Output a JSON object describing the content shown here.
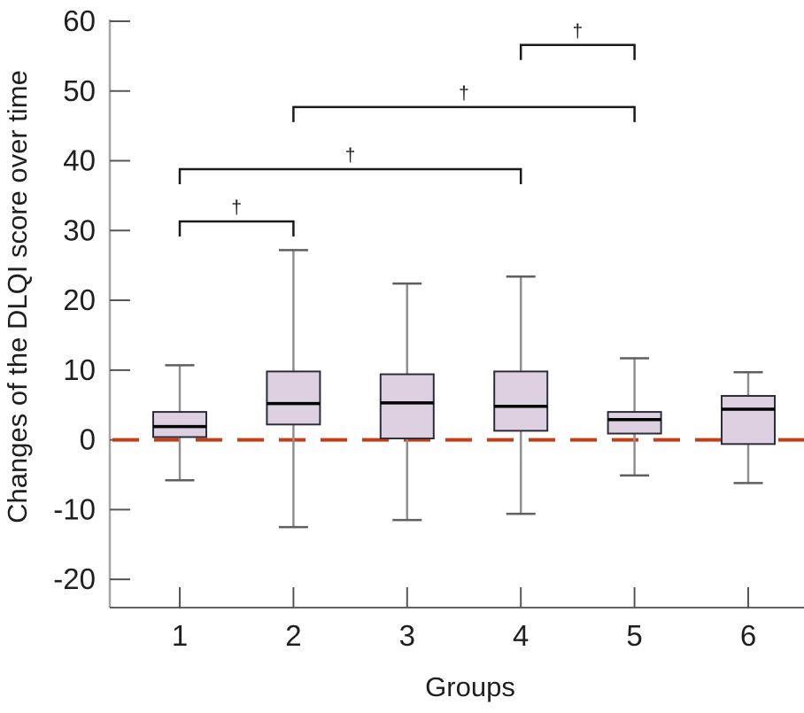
{
  "figure": {
    "ylabel": "Changes of the DLQI score over time",
    "xlabel": "Groups"
  },
  "chart_data": {
    "type": "boxplot",
    "title": "",
    "xlabel": "Groups",
    "ylabel": "Changes of the DLQI score over time",
    "categories": [
      "1",
      "2",
      "3",
      "4",
      "5",
      "6"
    ],
    "y_ticks": [
      60,
      50,
      40,
      30,
      20,
      10,
      0,
      -10,
      -20
    ],
    "ylim": [
      -24,
      61
    ],
    "grid": false,
    "legend": "none",
    "series": [
      {
        "group": "1",
        "whisker_low": -5.8,
        "q1": 0.4,
        "median": 1.9,
        "q3": 4.0,
        "whisker_high": 10.7
      },
      {
        "group": "2",
        "whisker_low": -12.5,
        "q1": 2.2,
        "median": 5.2,
        "q3": 9.8,
        "whisker_high": 27.2
      },
      {
        "group": "3",
        "whisker_low": -11.5,
        "q1": 0.2,
        "median": 5.3,
        "q3": 9.4,
        "whisker_high": 22.4
      },
      {
        "group": "4",
        "whisker_low": -10.6,
        "q1": 1.3,
        "median": 4.8,
        "q3": 9.8,
        "whisker_high": 23.4
      },
      {
        "group": "5",
        "whisker_low": -5.1,
        "q1": 0.9,
        "median": 2.9,
        "q3": 4.0,
        "whisker_high": 11.7
      },
      {
        "group": "6",
        "whisker_low": -6.2,
        "q1": -0.6,
        "median": 4.4,
        "q3": 6.3,
        "whisker_high": 9.7
      }
    ],
    "reference_line": {
      "value": 0,
      "style": "dashed",
      "color": "#c43d17"
    },
    "significance_brackets": [
      {
        "from": "1",
        "to": "2",
        "label": "†",
        "bar_value": 31.3
      },
      {
        "from": "1",
        "to": "4",
        "label": "†",
        "bar_value": 38.8
      },
      {
        "from": "2",
        "to": "5",
        "label": "†",
        "bar_value": 47.7
      },
      {
        "from": "4",
        "to": "5",
        "label": "†",
        "bar_value": 56.6
      }
    ],
    "colors": {
      "box_fill": "#ddd1e1",
      "box_border": "#2e2e38",
      "median": "#000000",
      "whisker_stem": "#8f8f8f",
      "whisker_cap": "#5f5f5f",
      "y_axis": "#a6a6a6",
      "x_axis": "#2e2e2e",
      "tick": "#555555",
      "bracket": "#1a1a1a",
      "text": "#1f1f1f"
    }
  }
}
